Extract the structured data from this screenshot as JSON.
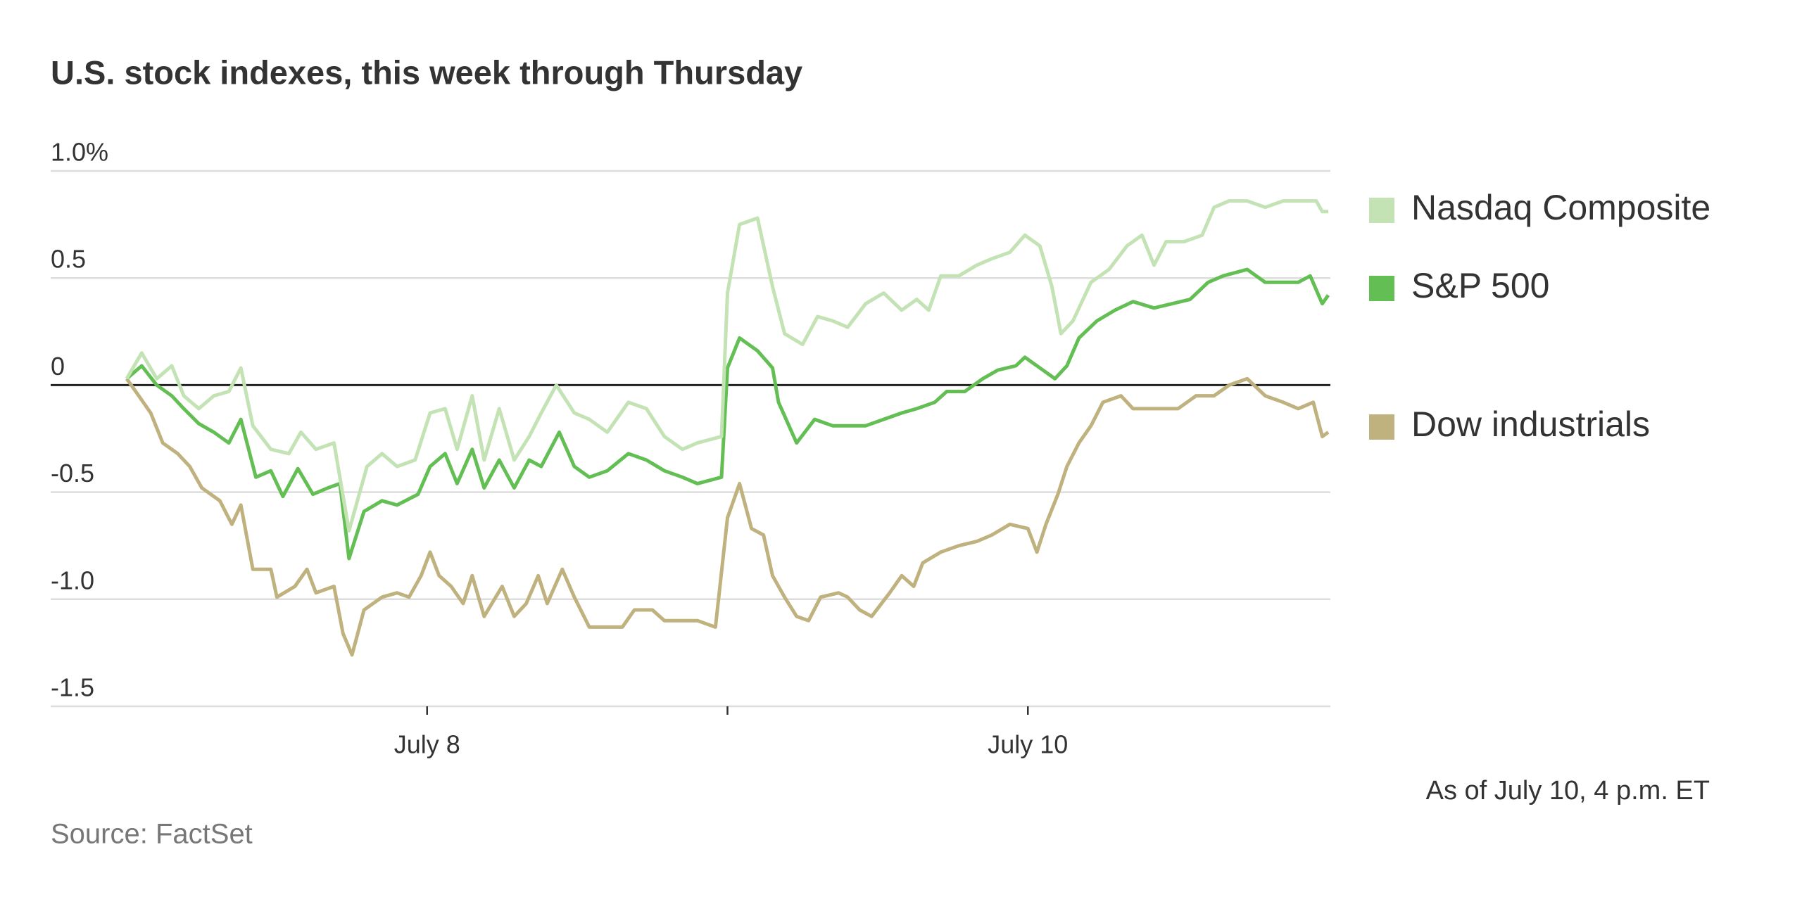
{
  "chart_data": {
    "type": "line",
    "title": "U.S. stock indexes, this week through Thursday",
    "note": "As of July 10, 4 p.m. ET",
    "source": "Source: FactSet",
    "xlim": [
      0,
      4
    ],
    "xticks": [
      {
        "value": 1,
        "label": "July 8"
      },
      {
        "value": 2,
        "label": null
      },
      {
        "value": 3,
        "label": "July 10"
      }
    ],
    "ylim": [
      -1.5,
      1.0
    ],
    "yticks": [
      {
        "value": 1,
        "label": "1.0%"
      },
      0.5,
      0,
      -0.5,
      {
        "value": -1,
        "label": "-1.0"
      },
      -1.5
    ],
    "grid": true,
    "legend": "right",
    "series": [
      {
        "name": "Nasdaq Composite",
        "color": "#c3e3b5",
        "x": [
          0,
          0.05,
          0.1,
          0.15,
          0.19,
          0.24,
          0.29,
          0.34,
          0.38,
          0.42,
          0.48,
          0.54,
          0.58,
          0.63,
          0.69,
          0.74,
          0.8,
          0.85,
          0.9,
          0.96,
          1.01,
          1.06,
          1.1,
          1.15,
          1.19,
          1.24,
          1.29,
          1.34,
          1.38,
          1.43,
          1.49,
          1.54,
          1.6,
          1.67,
          1.73,
          1.79,
          1.85,
          1.9,
          1.98,
          2,
          2.04,
          2.1,
          2.15,
          2.19,
          2.25,
          2.3,
          2.35,
          2.4,
          2.46,
          2.52,
          2.58,
          2.63,
          2.67,
          2.71,
          2.77,
          2.83,
          2.88,
          2.94,
          2.99,
          3.04,
          3.08,
          3.11,
          3.15,
          3.21,
          3.27,
          3.33,
          3.38,
          3.42,
          3.46,
          3.52,
          3.58,
          3.62,
          3.67,
          3.73,
          3.79,
          3.85,
          3.9,
          3.96,
          3.98,
          4
        ],
        "values": [
          0.03,
          0.15,
          0.03,
          0.09,
          -0.05,
          -0.11,
          -0.05,
          -0.03,
          0.08,
          -0.19,
          -0.3,
          -0.32,
          -0.22,
          -0.3,
          -0.27,
          -0.68,
          -0.38,
          -0.32,
          -0.38,
          -0.35,
          -0.13,
          -0.11,
          -0.3,
          -0.05,
          -0.35,
          -0.11,
          -0.35,
          -0.24,
          -0.13,
          0,
          -0.13,
          -0.16,
          -0.22,
          -0.08,
          -0.11,
          -0.24,
          -0.3,
          -0.27,
          -0.24,
          0.43,
          0.75,
          0.78,
          0.46,
          0.24,
          0.19,
          0.32,
          0.3,
          0.27,
          0.38,
          0.43,
          0.35,
          0.4,
          0.35,
          0.51,
          0.51,
          0.56,
          0.59,
          0.62,
          0.7,
          0.65,
          0.46,
          0.24,
          0.3,
          0.48,
          0.54,
          0.65,
          0.7,
          0.56,
          0.67,
          0.67,
          0.7,
          0.83,
          0.86,
          0.86,
          0.83,
          0.86,
          0.86,
          0.86,
          0.81,
          0.81
        ]
      },
      {
        "name": "S&P 500",
        "color": "#63bf54",
        "x": [
          0,
          0.05,
          0.1,
          0.15,
          0.19,
          0.24,
          0.29,
          0.34,
          0.38,
          0.43,
          0.48,
          0.52,
          0.57,
          0.62,
          0.67,
          0.71,
          0.74,
          0.79,
          0.85,
          0.9,
          0.97,
          1.01,
          1.06,
          1.1,
          1.15,
          1.19,
          1.24,
          1.29,
          1.34,
          1.38,
          1.44,
          1.49,
          1.54,
          1.6,
          1.67,
          1.73,
          1.79,
          1.85,
          1.9,
          1.98,
          2,
          2.04,
          2.1,
          2.15,
          2.17,
          2.23,
          2.29,
          2.35,
          2.4,
          2.46,
          2.52,
          2.58,
          2.63,
          2.69,
          2.73,
          2.79,
          2.85,
          2.9,
          2.96,
          2.99,
          3.04,
          3.09,
          3.13,
          3.17,
          3.23,
          3.29,
          3.35,
          3.42,
          3.48,
          3.54,
          3.6,
          3.65,
          3.73,
          3.79,
          3.85,
          3.9,
          3.94,
          3.98,
          4
        ],
        "values": [
          0.03,
          0.09,
          0,
          -0.05,
          -0.11,
          -0.18,
          -0.22,
          -0.27,
          -0.16,
          -0.43,
          -0.4,
          -0.52,
          -0.39,
          -0.51,
          -0.48,
          -0.46,
          -0.81,
          -0.59,
          -0.54,
          -0.56,
          -0.51,
          -0.38,
          -0.32,
          -0.46,
          -0.3,
          -0.48,
          -0.35,
          -0.48,
          -0.35,
          -0.38,
          -0.22,
          -0.38,
          -0.43,
          -0.4,
          -0.32,
          -0.35,
          -0.4,
          -0.43,
          -0.46,
          -0.43,
          0.08,
          0.22,
          0.16,
          0.08,
          -0.08,
          -0.27,
          -0.16,
          -0.19,
          -0.19,
          -0.19,
          -0.16,
          -0.13,
          -0.11,
          -0.08,
          -0.03,
          -0.03,
          0.03,
          0.07,
          0.09,
          0.13,
          0.08,
          0.03,
          0.09,
          0.22,
          0.3,
          0.35,
          0.39,
          0.36,
          0.38,
          0.4,
          0.48,
          0.51,
          0.54,
          0.48,
          0.48,
          0.48,
          0.51,
          0.38,
          0.42
        ]
      },
      {
        "name": "Dow industrials",
        "color": "#bfb27f",
        "x": [
          0,
          0.04,
          0.08,
          0.12,
          0.17,
          0.21,
          0.25,
          0.31,
          0.35,
          0.38,
          0.42,
          0.48,
          0.5,
          0.56,
          0.6,
          0.63,
          0.69,
          0.72,
          0.75,
          0.79,
          0.85,
          0.9,
          0.94,
          0.98,
          1.01,
          1.04,
          1.08,
          1.12,
          1.15,
          1.19,
          1.25,
          1.29,
          1.33,
          1.37,
          1.4,
          1.45,
          1.49,
          1.54,
          1.6,
          1.65,
          1.69,
          1.75,
          1.79,
          1.85,
          1.9,
          1.96,
          2,
          2.04,
          2.08,
          2.12,
          2.15,
          2.19,
          2.23,
          2.27,
          2.31,
          2.37,
          2.4,
          2.44,
          2.48,
          2.54,
          2.58,
          2.62,
          2.65,
          2.71,
          2.77,
          2.83,
          2.88,
          2.94,
          3,
          3.03,
          3.06,
          3.1,
          3.13,
          3.17,
          3.21,
          3.25,
          3.31,
          3.35,
          3.4,
          3.44,
          3.5,
          3.56,
          3.62,
          3.67,
          3.73,
          3.79,
          3.85,
          3.9,
          3.95,
          3.98,
          4
        ],
        "values": [
          0.03,
          -0.05,
          -0.13,
          -0.27,
          -0.32,
          -0.38,
          -0.48,
          -0.54,
          -0.65,
          -0.56,
          -0.86,
          -0.86,
          -0.99,
          -0.94,
          -0.86,
          -0.97,
          -0.94,
          -1.16,
          -1.26,
          -1.05,
          -0.99,
          -0.97,
          -0.99,
          -0.89,
          -0.78,
          -0.89,
          -0.94,
          -1.02,
          -0.89,
          -1.08,
          -0.94,
          -1.08,
          -1.02,
          -0.89,
          -1.02,
          -0.86,
          -0.99,
          -1.13,
          -1.13,
          -1.13,
          -1.05,
          -1.05,
          -1.1,
          -1.1,
          -1.1,
          -1.13,
          -0.62,
          -0.46,
          -0.67,
          -0.7,
          -0.89,
          -0.99,
          -1.08,
          -1.1,
          -0.99,
          -0.97,
          -0.99,
          -1.05,
          -1.08,
          -0.97,
          -0.89,
          -0.94,
          -0.83,
          -0.78,
          -0.75,
          -0.73,
          -0.7,
          -0.65,
          -0.67,
          -0.78,
          -0.65,
          -0.51,
          -0.38,
          -0.27,
          -0.19,
          -0.08,
          -0.05,
          -0.11,
          -0.11,
          -0.11,
          -0.11,
          -0.05,
          -0.05,
          0,
          0.03,
          -0.05,
          -0.08,
          -0.11,
          -0.08,
          -0.24,
          -0.22
        ]
      }
    ]
  }
}
